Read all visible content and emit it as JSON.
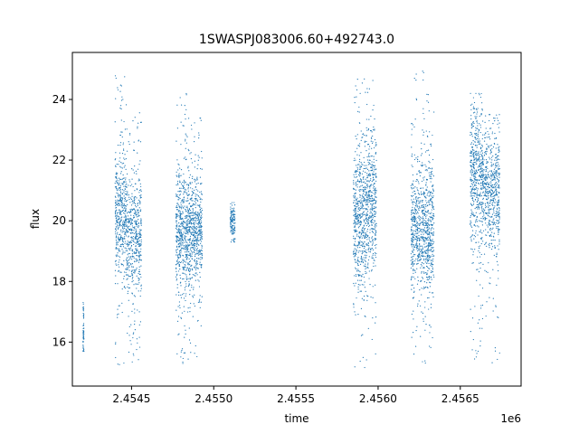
{
  "chart_data": {
    "type": "scatter",
    "title": "1SWASPJ083006.60+492743.0",
    "xlabel": "time",
    "ylabel": "flux",
    "x_offset_label": "1e6",
    "xlim": [
      2454140,
      2456870
    ],
    "ylim": [
      14.55,
      25.55
    ],
    "x_ticks": [
      2454500,
      2455000,
      2455500,
      2456000,
      2456500
    ],
    "x_tick_labels": [
      "2.4545",
      "2.4550",
      "2.4555",
      "2.4560",
      "2.4565"
    ],
    "y_ticks": [
      16,
      18,
      20,
      22,
      24
    ],
    "y_tick_labels": [
      "16",
      "18",
      "20",
      "22",
      "24"
    ],
    "grid": false,
    "marker_color": "#1f77b4",
    "series": [
      {
        "values": [
          {
            "x_start": 2454205,
            "x_end": 2454210,
            "y_min": 15.7,
            "y_max": 17.6,
            "center": 16.4,
            "spread": 0.5,
            "points": 60
          },
          {
            "x_start": 2454400,
            "x_end": 2454470,
            "y_min": 15.2,
            "y_max": 24.8,
            "center": 20.2,
            "spread": 0.9,
            "points": 450
          },
          {
            "x_start": 2454470,
            "x_end": 2454560,
            "y_min": 15.3,
            "y_max": 23.8,
            "center": 19.5,
            "spread": 1.0,
            "points": 500
          },
          {
            "x_start": 2454770,
            "x_end": 2454860,
            "y_min": 15.2,
            "y_max": 24.2,
            "center": 19.6,
            "spread": 1.0,
            "points": 650
          },
          {
            "x_start": 2454860,
            "x_end": 2454930,
            "y_min": 15.5,
            "y_max": 23.5,
            "center": 19.7,
            "spread": 0.9,
            "points": 450
          },
          {
            "x_start": 2455100,
            "x_end": 2455130,
            "y_min": 19.3,
            "y_max": 20.6,
            "center": 19.9,
            "spread": 0.3,
            "points": 120
          },
          {
            "x_start": 2455850,
            "x_end": 2455930,
            "y_min": 15.0,
            "y_max": 25.0,
            "center": 20.0,
            "spread": 1.2,
            "points": 550
          },
          {
            "x_start": 2455930,
            "x_end": 2455990,
            "y_min": 15.3,
            "y_max": 25.0,
            "center": 20.5,
            "spread": 1.1,
            "points": 400
          },
          {
            "x_start": 2456200,
            "x_end": 2456290,
            "y_min": 15.1,
            "y_max": 25.0,
            "center": 19.6,
            "spread": 1.0,
            "points": 550
          },
          {
            "x_start": 2456290,
            "x_end": 2456340,
            "y_min": 15.5,
            "y_max": 24.5,
            "center": 19.8,
            "spread": 1.0,
            "points": 350
          },
          {
            "x_start": 2456560,
            "x_end": 2456640,
            "y_min": 15.3,
            "y_max": 24.2,
            "center": 21.5,
            "spread": 1.2,
            "points": 550
          },
          {
            "x_start": 2456640,
            "x_end": 2456740,
            "y_min": 15.3,
            "y_max": 23.5,
            "center": 21.0,
            "spread": 1.0,
            "points": 550
          }
        ]
      }
    ]
  }
}
